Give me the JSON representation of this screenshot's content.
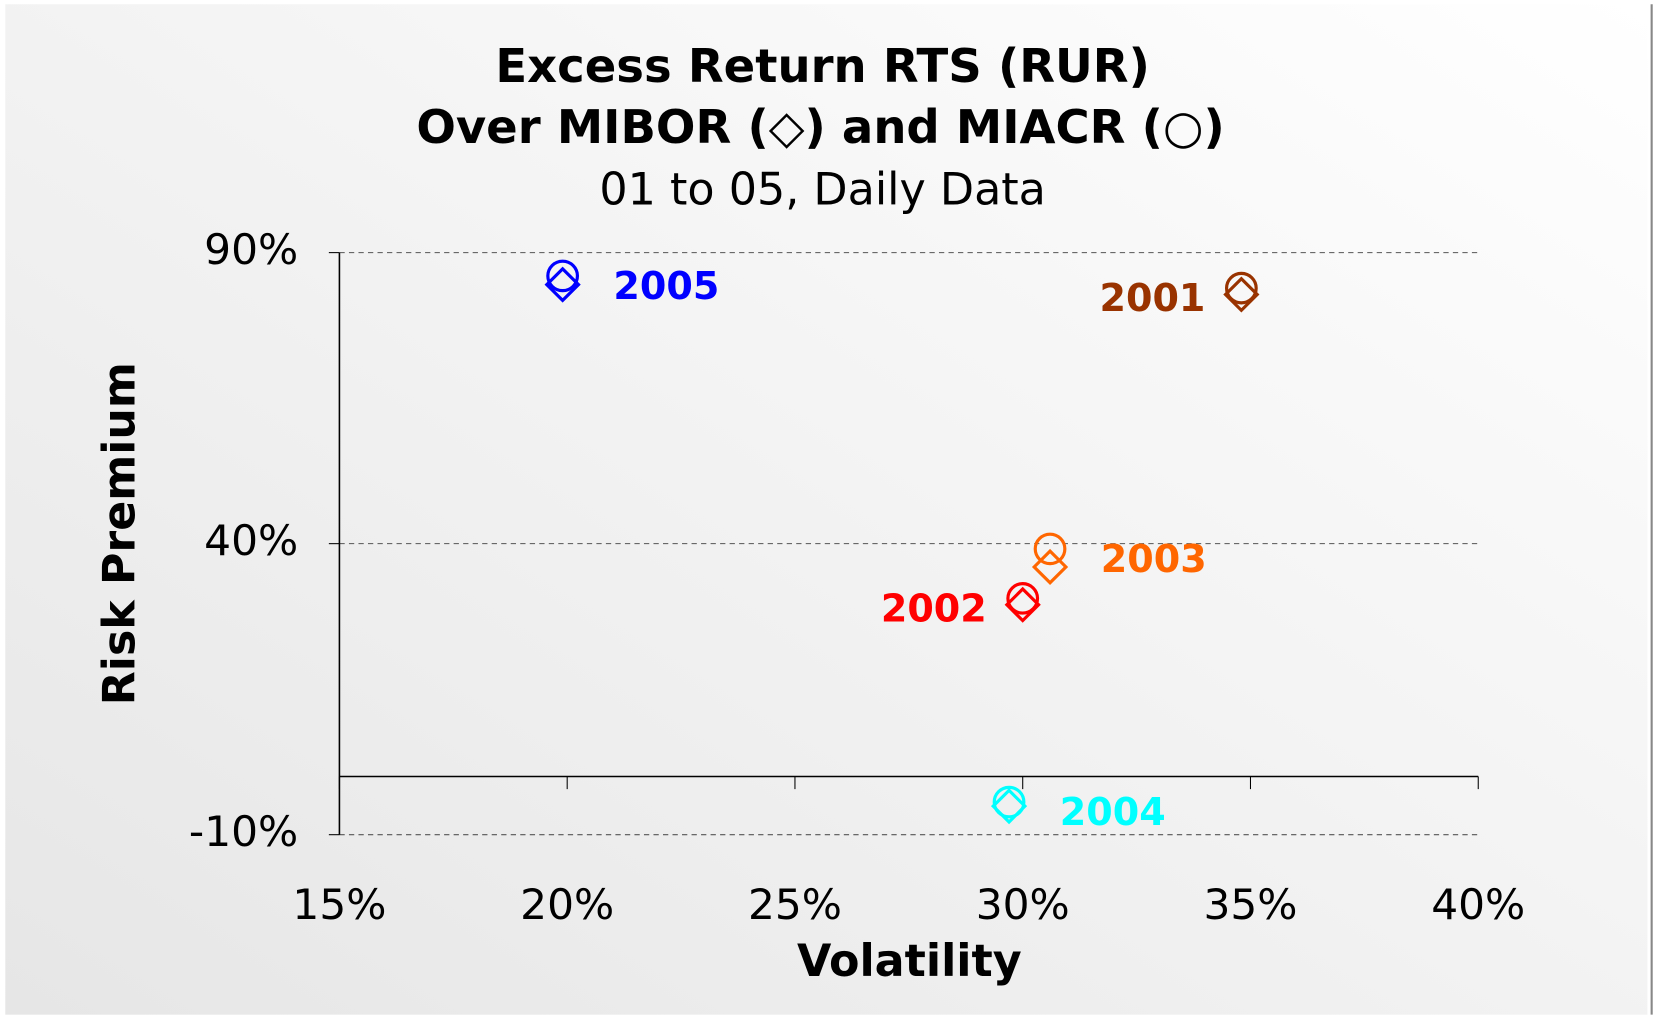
{
  "chart_data": {
    "type": "scatter",
    "title": "Excess Return RTS (RUR)",
    "title_line2": "Over MIBOR (◇) and MIACR (○)",
    "subtitle": "01 to 05, Daily Data",
    "x_label": "Volatility",
    "y_label": "Risk Premium",
    "point_labels": [
      "2005",
      "2001",
      "2003",
      "2002",
      "2004"
    ],
    "point_colors": [
      "#0000ff",
      "#993300",
      "#ff6600",
      "#ff0000",
      "#00ffff"
    ],
    "series": [
      {
        "marker": "diamond",
        "x": [
          19.9,
          34.8,
          30.6,
          30.0,
          29.7
        ],
        "values": [
          84.5,
          82.8,
          36.0,
          29.5,
          -5.1
        ]
      },
      {
        "marker": "circle",
        "x": [
          19.9,
          34.8,
          30.6,
          30.0,
          29.7
        ],
        "values": [
          86.0,
          83.9,
          39.1,
          30.6,
          -4.4
        ]
      }
    ],
    "xlim": [
      15,
      40
    ],
    "xticks": [
      {
        "value": 15,
        "label": "15%"
      },
      {
        "value": 20,
        "label": "20%"
      },
      {
        "value": 25,
        "label": "25%"
      },
      {
        "value": 30,
        "label": "30%"
      },
      {
        "value": 35,
        "label": "35%"
      },
      {
        "value": 40,
        "label": "40%"
      }
    ],
    "ylim": [
      -10,
      90
    ],
    "yticks": [
      {
        "value": -10,
        "label": "-10%"
      },
      {
        "value": 40,
        "label": "40%"
      },
      {
        "value": 90,
        "label": "90%"
      }
    ],
    "grid": true
  }
}
